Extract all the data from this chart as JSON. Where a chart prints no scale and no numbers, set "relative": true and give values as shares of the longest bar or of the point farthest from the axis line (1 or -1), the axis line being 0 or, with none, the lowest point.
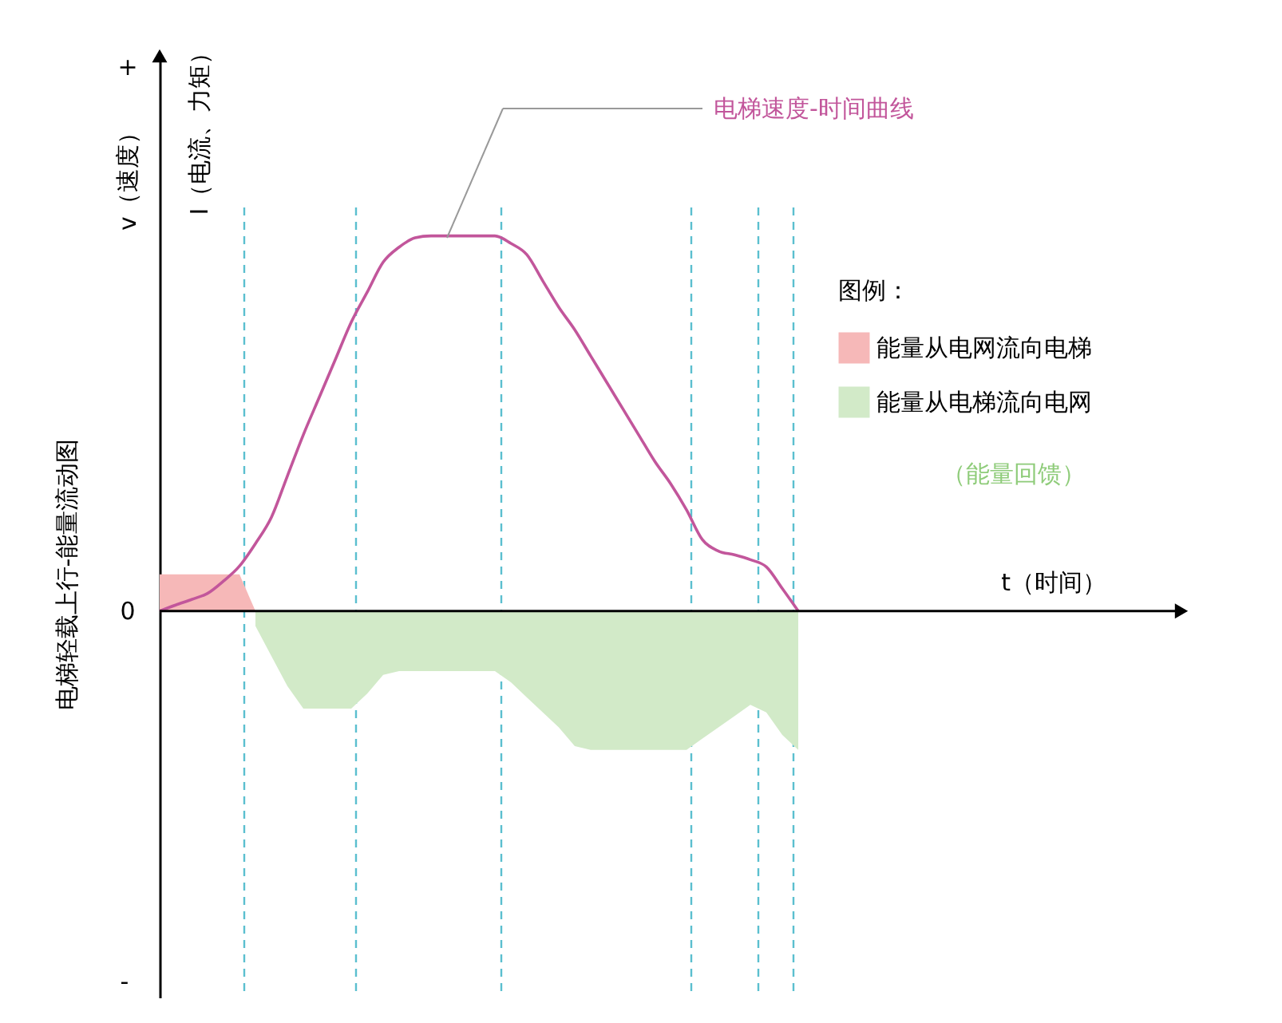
{
  "chart_data": {
    "type": "line",
    "relative": true,
    "title": "电梯轻载上行-能量流动图",
    "ylabel": "v（速度）",
    "legend_title": "图例：",
    "legend": "right",
    "grid": false,
    "marker": "none",
    "line_style": "solid",
    "annotations": [
      "+",
      "0",
      "-",
      "I（电流、力矩）",
      "（能量回馈）",
      "t（时间）"
    ],
    "categories": [
      null,
      null,
      null,
      null,
      null,
      null,
      null,
      null,
      null,
      null,
      null,
      null,
      null,
      null,
      null,
      null,
      null,
      null,
      null,
      null,
      null,
      null,
      null,
      null,
      null,
      null,
      null,
      null,
      null,
      null,
      null,
      null,
      null,
      null,
      null,
      null,
      null,
      null,
      null,
      null,
      null
    ],
    "series": [
      {
        "name": "电梯速度-时间曲线",
        "color": "#c2569b",
        "values": [
          0,
          0.016,
          0.031,
          0.047,
          0.08,
          0.12,
          0.18,
          0.25,
          0.36,
          0.47,
          0.57,
          0.67,
          0.77,
          0.85,
          0.93,
          0.97,
          0.995,
          1,
          1,
          1,
          1,
          1,
          0.98,
          0.95,
          0.88,
          0.81,
          0.75,
          0.68,
          0.61,
          0.54,
          0.47,
          0.4,
          0.34,
          0.27,
          0.19,
          0.16,
          0.15,
          0.137,
          0.118,
          0.06,
          0
        ]
      },
      {
        "name": "能量从电网流向电梯",
        "type": "area",
        "color": "#f6b8b8",
        "values": [
          0.098,
          0.098,
          0.098,
          0.098,
          0.098,
          0.098,
          0,
          null,
          null,
          null,
          null,
          null,
          null,
          null,
          null,
          null,
          null,
          null,
          null,
          null,
          null,
          null,
          null,
          null,
          null,
          null,
          null,
          null,
          null,
          null,
          null,
          null,
          null,
          null,
          null,
          null,
          null,
          null,
          null,
          null,
          null
        ]
      },
      {
        "name": "能量从电梯流向电网",
        "type": "area",
        "color": "#d2eac8",
        "values": [
          null,
          null,
          null,
          null,
          null,
          null,
          -0.04,
          -0.12,
          -0.2,
          -0.26,
          -0.26,
          -0.26,
          -0.26,
          -0.22,
          -0.17,
          -0.16,
          -0.16,
          -0.16,
          -0.16,
          -0.16,
          -0.16,
          -0.16,
          -0.19,
          -0.23,
          -0.27,
          -0.31,
          -0.36,
          -0.37,
          -0.37,
          -0.37,
          -0.37,
          -0.37,
          -0.37,
          -0.37,
          -0.34,
          -0.31,
          -0.28,
          -0.25,
          -0.27,
          -0.33,
          -0.37
        ]
      }
    ]
  }
}
